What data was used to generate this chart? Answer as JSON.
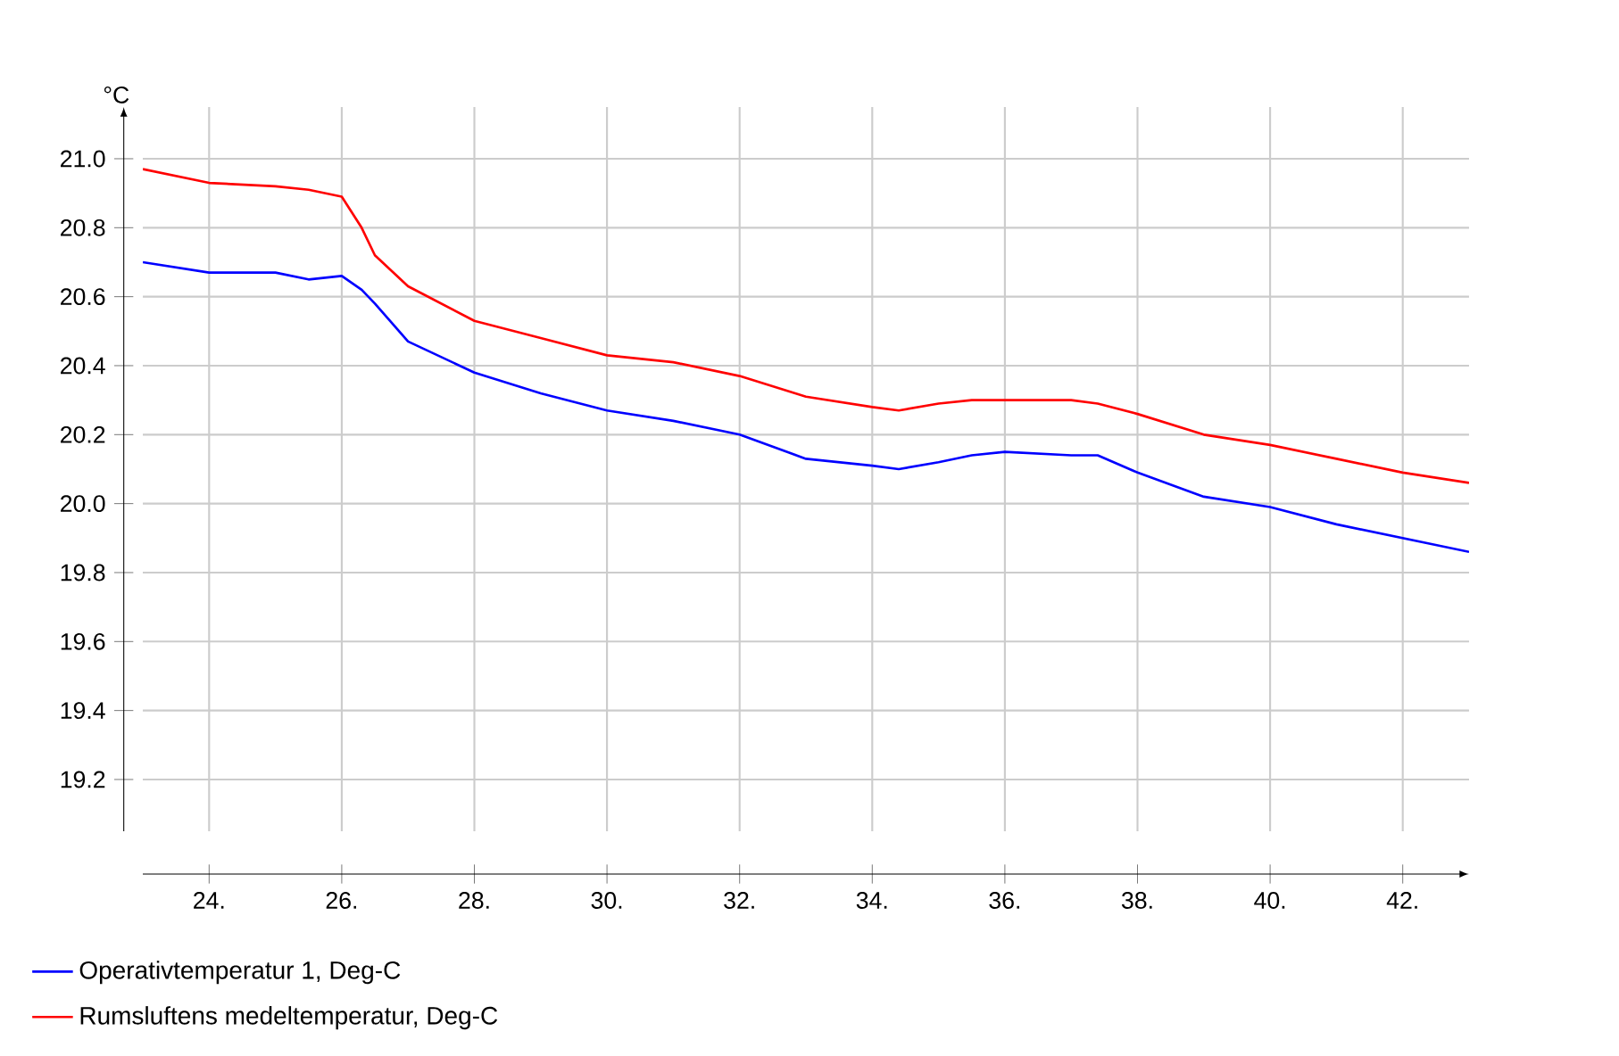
{
  "chart_data": {
    "type": "line",
    "ylabel": "°C",
    "xlim": [
      23,
      43
    ],
    "ylim": [
      19.05,
      21.15
    ],
    "xticks": [
      {
        "value": 24,
        "label": "24."
      },
      {
        "value": 26,
        "label": "26."
      },
      {
        "value": 28,
        "label": "28."
      },
      {
        "value": 30,
        "label": "30."
      },
      {
        "value": 32,
        "label": "32."
      },
      {
        "value": 34,
        "label": "34."
      },
      {
        "value": 36,
        "label": "36."
      },
      {
        "value": 38,
        "label": "38."
      },
      {
        "value": 40,
        "label": "40."
      },
      {
        "value": 42,
        "label": "42."
      }
    ],
    "yticks": [
      {
        "value": 19.2,
        "label": "19.2"
      },
      {
        "value": 19.4,
        "label": "19.4"
      },
      {
        "value": 19.6,
        "label": "19.6"
      },
      {
        "value": 19.8,
        "label": "19.8"
      },
      {
        "value": 20.0,
        "label": "20.0"
      },
      {
        "value": 20.2,
        "label": "20.2"
      },
      {
        "value": 20.4,
        "label": "20.4"
      },
      {
        "value": 20.6,
        "label": "20.6"
      },
      {
        "value": 20.8,
        "label": "20.8"
      },
      {
        "value": 21.0,
        "label": "21.0"
      }
    ],
    "grid": true,
    "legend": "bottom left",
    "marker": "none",
    "line_style": "solid",
    "x": [
      23,
      24,
      25,
      25.5,
      26,
      26.3,
      26.5,
      27,
      28,
      29,
      30,
      31,
      32,
      33,
      34,
      34.4,
      35,
      35.5,
      36,
      37,
      37.4,
      38,
      39,
      40,
      41,
      42,
      43
    ],
    "series": [
      {
        "name": "Operativtemperatur 1, Deg-C",
        "color": "#0000ff",
        "values": [
          20.7,
          20.67,
          20.67,
          20.65,
          20.66,
          20.62,
          20.58,
          20.47,
          20.38,
          20.32,
          20.27,
          20.24,
          20.2,
          20.13,
          20.11,
          20.1,
          20.12,
          20.14,
          20.15,
          20.14,
          20.14,
          20.09,
          20.02,
          19.99,
          19.94,
          19.9,
          19.86
        ]
      },
      {
        "name": "Rumsluftens medeltemperatur, Deg-C",
        "color": "#ff0000",
        "values": [
          20.97,
          20.93,
          20.92,
          20.91,
          20.89,
          20.8,
          20.72,
          20.63,
          20.53,
          20.48,
          20.43,
          20.41,
          20.37,
          20.31,
          20.28,
          20.27,
          20.29,
          20.3,
          20.3,
          20.3,
          20.29,
          20.26,
          20.2,
          20.17,
          20.13,
          20.09,
          20.06
        ]
      }
    ]
  }
}
